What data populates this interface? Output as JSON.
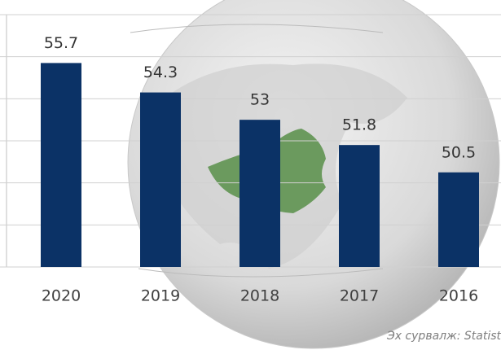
{
  "chart_data": {
    "type": "bar",
    "categories": [
      "2020",
      "2019",
      "2018",
      "2017",
      "2016"
    ],
    "values": [
      55.7,
      54.3,
      53,
      51.8,
      50.5
    ],
    "value_labels": [
      "55.7",
      "54.3",
      "53",
      "51.8",
      "50.5"
    ],
    "color": "#0b3266",
    "ylim": [
      46,
      58
    ],
    "yticks": [
      46,
      48,
      50,
      52,
      54,
      56,
      58
    ],
    "grid": true,
    "source": "Эх сурвалж: Statist"
  }
}
